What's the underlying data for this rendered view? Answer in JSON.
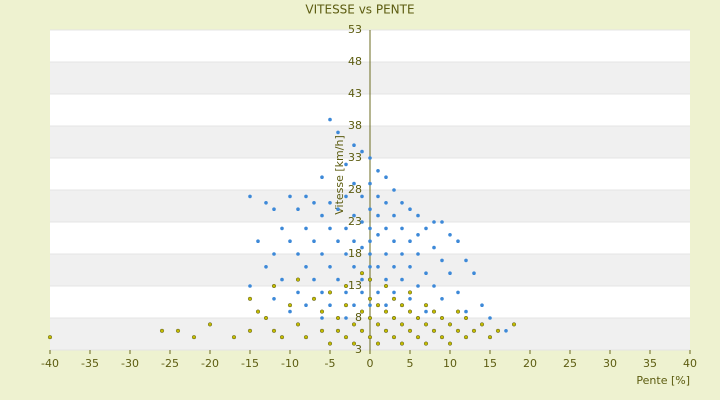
{
  "chart_data": {
    "type": "scatter",
    "title": "VITESSE vs PENTE",
    "x_label": "Pente [%]",
    "y_label": "Vitesse [km/h]",
    "xlim": [
      -40,
      40
    ],
    "xticks": [
      -40,
      -35,
      -30,
      -25,
      -20,
      -15,
      -10,
      -5,
      0,
      5,
      10,
      15,
      20,
      25,
      30,
      35,
      40
    ],
    "ylim": [
      3,
      53
    ],
    "yticks": [
      3,
      8,
      13,
      18,
      23,
      28,
      33,
      38,
      43,
      48,
      53
    ],
    "grid": true,
    "series": [
      {
        "color": "#3d89d8",
        "x": [
          -5,
          -4,
          -2,
          -1,
          0,
          -3,
          1,
          -6,
          2,
          -2,
          0,
          3,
          -15,
          -13,
          -10,
          -8,
          -7,
          -5,
          -3,
          -1,
          1,
          2,
          4,
          5,
          -12,
          -9,
          -6,
          -4,
          -2,
          0,
          1,
          3,
          6,
          8,
          9,
          -11,
          -8,
          -5,
          -3,
          -1,
          0,
          2,
          4,
          6,
          7,
          10,
          -14,
          -10,
          -7,
          -4,
          -2,
          0,
          1,
          3,
          5,
          8,
          11,
          -12,
          -9,
          -6,
          -3,
          -1,
          0,
          2,
          4,
          6,
          9,
          12,
          -13,
          -8,
          -5,
          -2,
          0,
          1,
          3,
          5,
          7,
          10,
          13,
          -11,
          -7,
          -4,
          -1,
          0,
          2,
          4,
          6,
          8,
          11,
          -15,
          -9,
          -6,
          -3,
          -1,
          1,
          3,
          5,
          9,
          14,
          -12,
          -8,
          -5,
          -2,
          0,
          2,
          4,
          7,
          12,
          -10,
          -6,
          -3,
          0,
          3,
          6,
          15,
          -4,
          2,
          8,
          17
        ],
        "y": [
          39,
          37,
          35,
          34,
          33,
          32,
          31,
          30,
          30,
          29,
          29,
          28,
          27,
          26,
          27,
          27,
          26,
          26,
          27,
          27,
          27,
          26,
          26,
          25,
          25,
          25,
          24,
          25,
          24,
          25,
          24,
          24,
          24,
          23,
          23,
          22,
          22,
          22,
          22,
          23,
          22,
          22,
          22,
          21,
          22,
          21,
          20,
          20,
          20,
          20,
          20,
          20,
          21,
          20,
          20,
          19,
          20,
          18,
          18,
          18,
          18,
          19,
          18,
          18,
          18,
          18,
          17,
          17,
          16,
          16,
          16,
          16,
          16,
          16,
          16,
          16,
          15,
          15,
          15,
          14,
          14,
          14,
          14,
          14,
          14,
          14,
          13,
          13,
          12,
          13,
          12,
          12,
          12,
          12,
          12,
          12,
          11,
          11,
          10,
          11,
          10,
          10,
          10,
          10,
          10,
          10,
          9,
          9,
          9,
          8,
          8,
          8,
          8,
          8,
          8,
          6,
          6,
          6,
          6
        ]
      },
      {
        "color": "#c4bc00",
        "x": [
          -40,
          -26,
          -24,
          -22,
          -20,
          -17,
          -15,
          -14,
          -15,
          -13,
          -12,
          -11,
          -12,
          -10,
          -9,
          -8,
          -9,
          -7,
          -6,
          -6,
          -5,
          -5,
          -4,
          -4,
          -3,
          -3,
          -3,
          -2,
          -2,
          -1,
          -1,
          -1,
          0,
          0,
          0,
          0,
          1,
          1,
          1,
          2,
          2,
          2,
          3,
          3,
          3,
          4,
          4,
          4,
          5,
          5,
          5,
          6,
          6,
          7,
          7,
          7,
          8,
          8,
          9,
          9,
          10,
          10,
          11,
          11,
          12,
          12,
          13,
          14,
          15,
          16,
          18
        ],
        "y": [
          5,
          6,
          6,
          5,
          7,
          5,
          6,
          9,
          11,
          8,
          6,
          5,
          13,
          10,
          7,
          5,
          14,
          11,
          9,
          6,
          4,
          12,
          8,
          6,
          5,
          10,
          13,
          7,
          4,
          9,
          6,
          15,
          5,
          8,
          11,
          14,
          4,
          7,
          10,
          6,
          9,
          13,
          5,
          8,
          11,
          4,
          7,
          10,
          6,
          9,
          12,
          5,
          8,
          4,
          7,
          10,
          6,
          9,
          5,
          8,
          4,
          7,
          6,
          9,
          5,
          8,
          6,
          7,
          5,
          6,
          7
        ]
      }
    ]
  }
}
